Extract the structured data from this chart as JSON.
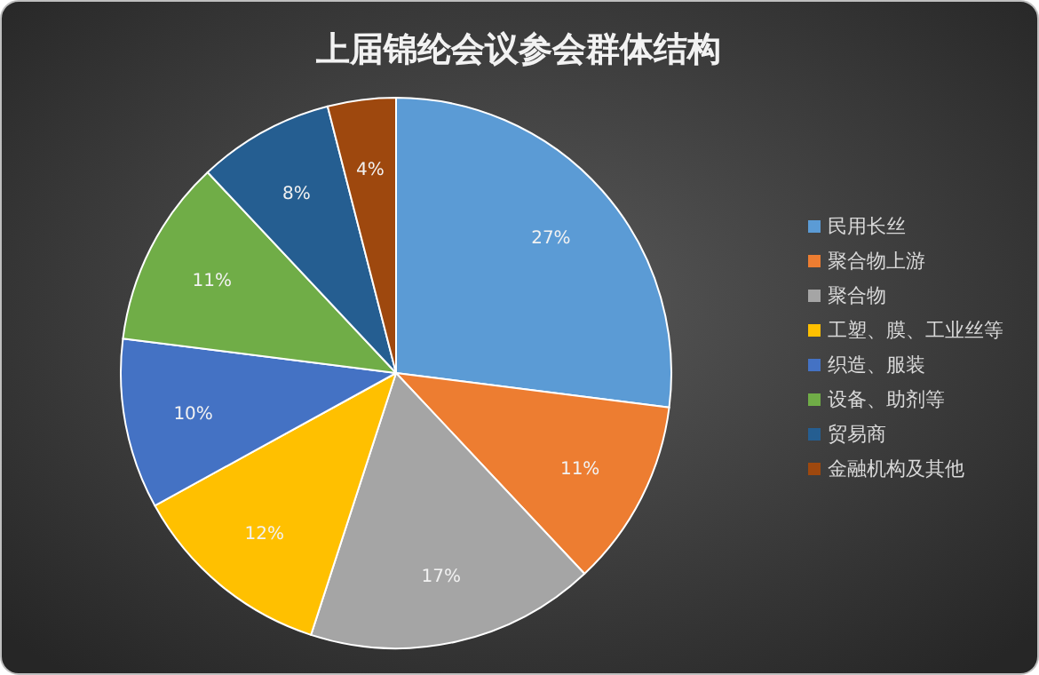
{
  "chart_data": {
    "type": "pie",
    "title": "上届锦纶会议参会群体结构",
    "categories": [
      "民用长丝",
      "聚合物上游",
      "聚合物",
      "工塑、膜、工业丝等",
      "织造、服装",
      "设备、助剂等",
      "贸易商",
      "金融机构及其他"
    ],
    "values": [
      27,
      11,
      17,
      12,
      10,
      11,
      8,
      4
    ],
    "colors": [
      "#5b9bd5",
      "#ed7d31",
      "#a5a5a5",
      "#ffc000",
      "#4472c4",
      "#70ad47",
      "#255e91",
      "#9e480e"
    ],
    "value_labels": [
      "27%",
      "11%",
      "17%",
      "12%",
      "10%",
      "11%",
      "8%",
      "4%"
    ],
    "legend": "right"
  }
}
